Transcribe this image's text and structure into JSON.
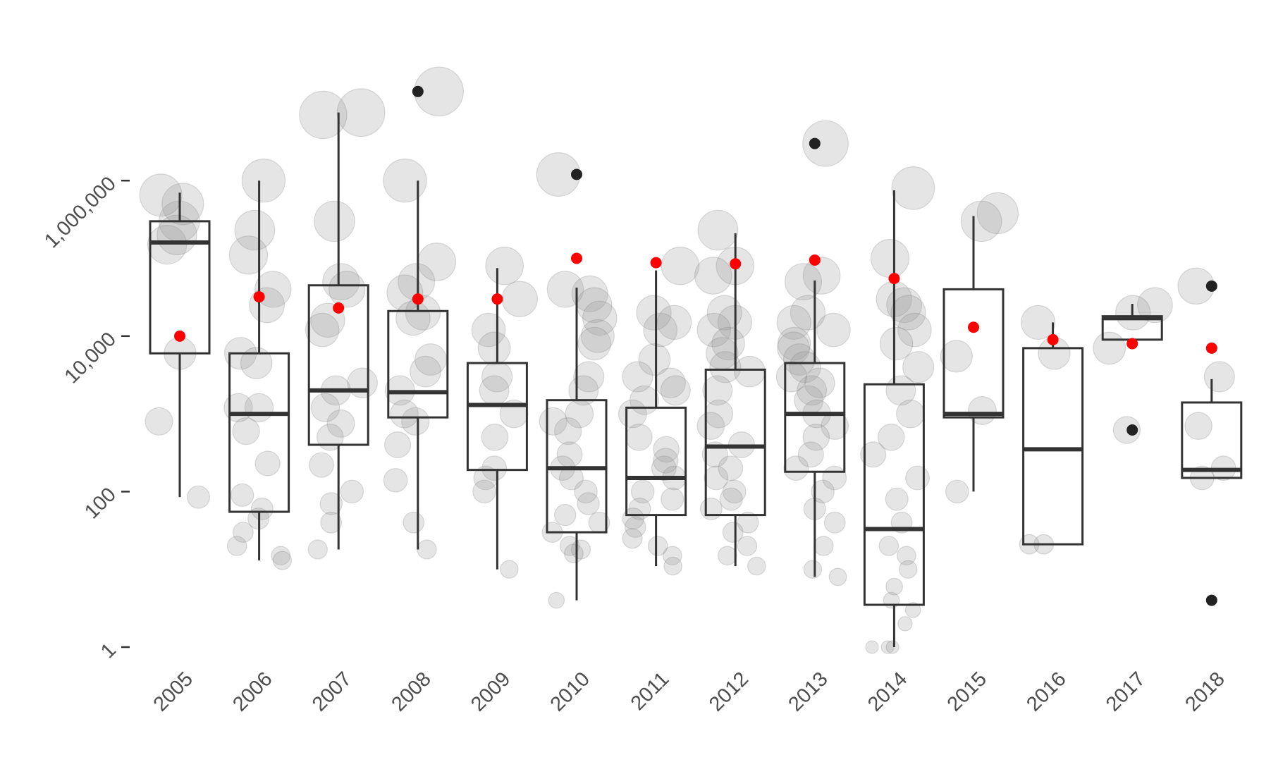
{
  "chart_data": {
    "type": "box",
    "title": "",
    "xlabel": "",
    "ylabel": "",
    "y_scale": "log10",
    "ylim": [
      1,
      30000000
    ],
    "y_ticks": [
      1,
      100,
      10000,
      1000000
    ],
    "y_tick_labels": [
      "1",
      "100",
      "10,000",
      "1,000,000"
    ],
    "categories": [
      "2005",
      "2006",
      "2007",
      "2008",
      "2009",
      "2010",
      "2011",
      "2012",
      "2013",
      "2014",
      "2015",
      "2016",
      "2017",
      "2018"
    ],
    "boxes": [
      {
        "category": "2005",
        "whisker_low": 85,
        "q1": 6000,
        "median": 160000,
        "q3": 300000,
        "whisker_high": 700000,
        "outliers": []
      },
      {
        "category": "2006",
        "whisker_low": 13,
        "q1": 55,
        "median": 1000,
        "q3": 6000,
        "whisker_high": 1000000,
        "outliers": []
      },
      {
        "category": "2007",
        "whisker_low": 18,
        "q1": 400,
        "median": 2000,
        "q3": 45000,
        "whisker_high": 7500000,
        "outliers": []
      },
      {
        "category": "2008",
        "whisker_low": 18,
        "q1": 900,
        "median": 1900,
        "q3": 21000,
        "whisker_high": 1000000,
        "outliers": [
          14000000
        ]
      },
      {
        "category": "2009",
        "whisker_low": 10,
        "q1": 190,
        "median": 1300,
        "q3": 4500,
        "whisker_high": 75000,
        "outliers": []
      },
      {
        "category": "2010",
        "whisker_low": 4,
        "q1": 30,
        "median": 200,
        "q3": 1500,
        "whisker_high": 42000,
        "outliers": [
          1200000
        ]
      },
      {
        "category": "2011",
        "whisker_low": 11,
        "q1": 50,
        "median": 150,
        "q3": 1200,
        "whisker_high": 70000,
        "outliers": []
      },
      {
        "category": "2012",
        "whisker_low": 11,
        "q1": 50,
        "median": 380,
        "q3": 3700,
        "whisker_high": 210000,
        "outliers": []
      },
      {
        "category": "2013",
        "whisker_low": 8,
        "q1": 180,
        "median": 1000,
        "q3": 4500,
        "whisker_high": 52000,
        "outliers": [
          3000000
        ]
      },
      {
        "category": "2014",
        "whisker_low": 1,
        "q1": 3.5,
        "median": 33,
        "q3": 2400,
        "whisker_high": 750000,
        "outliers": []
      },
      {
        "category": "2015",
        "whisker_low": 100,
        "q1": 900,
        "median": 1000,
        "q3": 40000,
        "whisker_high": 350000,
        "outliers": []
      },
      {
        "category": "2016",
        "whisker_low": 21,
        "q1": 21,
        "median": 350,
        "q3": 7000,
        "whisker_high": 15000,
        "outliers": []
      },
      {
        "category": "2017",
        "whisker_low": 9000,
        "q1": 9000,
        "median": 17000,
        "q3": 18000,
        "whisker_high": 26000,
        "outliers": [
          620
        ]
      },
      {
        "category": "2018",
        "whisker_low": 150,
        "q1": 150,
        "median": 190,
        "q3": 1400,
        "whisker_high": 2800,
        "outliers": [
          44000,
          4
        ]
      }
    ],
    "means": [
      {
        "category": "2005",
        "value": 10000
      },
      {
        "category": "2006",
        "value": 32000
      },
      {
        "category": "2007",
        "value": 23000
      },
      {
        "category": "2008",
        "value": 30000
      },
      {
        "category": "2009",
        "value": 30000
      },
      {
        "category": "2010",
        "value": 100000
      },
      {
        "category": "2011",
        "value": 88000
      },
      {
        "category": "2012",
        "value": 85000
      },
      {
        "category": "2013",
        "value": 95000
      },
      {
        "category": "2014",
        "value": 55000
      },
      {
        "category": "2015",
        "value": 13000
      },
      {
        "category": "2016",
        "value": 9000
      },
      {
        "category": "2017",
        "value": 8000
      },
      {
        "category": "2018",
        "value": 7000
      }
    ],
    "points": [
      {
        "category": "2005",
        "values": [
          300000,
          500000,
          650000,
          150000,
          200000,
          6000,
          800,
          85
        ]
      },
      {
        "category": "2006",
        "values": [
          1000000,
          230000,
          110000,
          40000,
          25000,
          1200,
          1200,
          600,
          230,
          90,
          60,
          45,
          30,
          20,
          15,
          13,
          6000,
          4500
        ]
      },
      {
        "category": "2007",
        "values": [
          7500000,
          7000000,
          300000,
          50000,
          40000,
          16000,
          12000,
          2500,
          2000,
          1200,
          750,
          500,
          220,
          100,
          70,
          40,
          18
        ]
      },
      {
        "category": "2008",
        "values": [
          14000000,
          1000000,
          90000,
          50000,
          36000,
          20000,
          17000,
          5000,
          3500,
          2000,
          1000,
          800,
          400,
          140,
          40,
          18
        ]
      },
      {
        "category": "2009",
        "values": [
          80000,
          30000,
          12000,
          7000,
          3000,
          2000,
          1000,
          500,
          200,
          150,
          100,
          10
        ]
      },
      {
        "category": "2010",
        "values": [
          1200000,
          40000,
          35000,
          25000,
          17000,
          10000,
          8000,
          3000,
          2000,
          1000,
          800,
          600,
          300,
          200,
          150,
          100,
          70,
          50,
          40,
          30,
          20,
          18,
          16,
          4
        ]
      },
      {
        "category": "2011",
        "values": [
          80000,
          20000,
          15000,
          12000,
          5000,
          3000,
          2500,
          2000,
          1500,
          1000,
          500,
          350,
          250,
          200,
          150,
          100,
          80,
          60,
          45,
          35,
          25,
          20,
          15,
          11
        ]
      },
      {
        "category": "2012",
        "values": [
          230000,
          80000,
          60000,
          20000,
          15000,
          12000,
          8000,
          6000,
          4000,
          3500,
          2000,
          1000,
          700,
          400,
          300,
          200,
          150,
          100,
          80,
          60,
          40,
          30,
          20,
          15,
          11
        ]
      },
      {
        "category": "2013",
        "values": [
          3000000,
          60000,
          50000,
          20000,
          15000,
          12000,
          8000,
          7000,
          5000,
          4000,
          3000,
          2500,
          2000,
          1500,
          1000,
          700,
          500,
          300,
          200,
          150,
          100,
          60,
          40,
          20,
          10,
          8
        ]
      },
      {
        "category": "2014",
        "values": [
          800000,
          100000,
          30000,
          25000,
          20000,
          12000,
          8000,
          4000,
          2000,
          1000,
          500,
          300,
          150,
          80,
          40,
          20,
          15,
          10,
          6,
          4,
          3,
          2,
          1,
          1,
          1
        ]
      },
      {
        "category": "2015",
        "values": [
          380000,
          300000,
          5500,
          1100,
          100
        ]
      },
      {
        "category": "2016",
        "values": [
          15000,
          6000,
          21,
          21
        ]
      },
      {
        "category": "2017",
        "values": [
          25000,
          20000,
          7000,
          620
        ]
      },
      {
        "category": "2018",
        "values": [
          44000,
          3000,
          700,
          200,
          150
        ]
      }
    ],
    "colors": {
      "box": "#333333",
      "mean": "#ff0000",
      "points": "#999999",
      "outlier": "#222222"
    }
  }
}
